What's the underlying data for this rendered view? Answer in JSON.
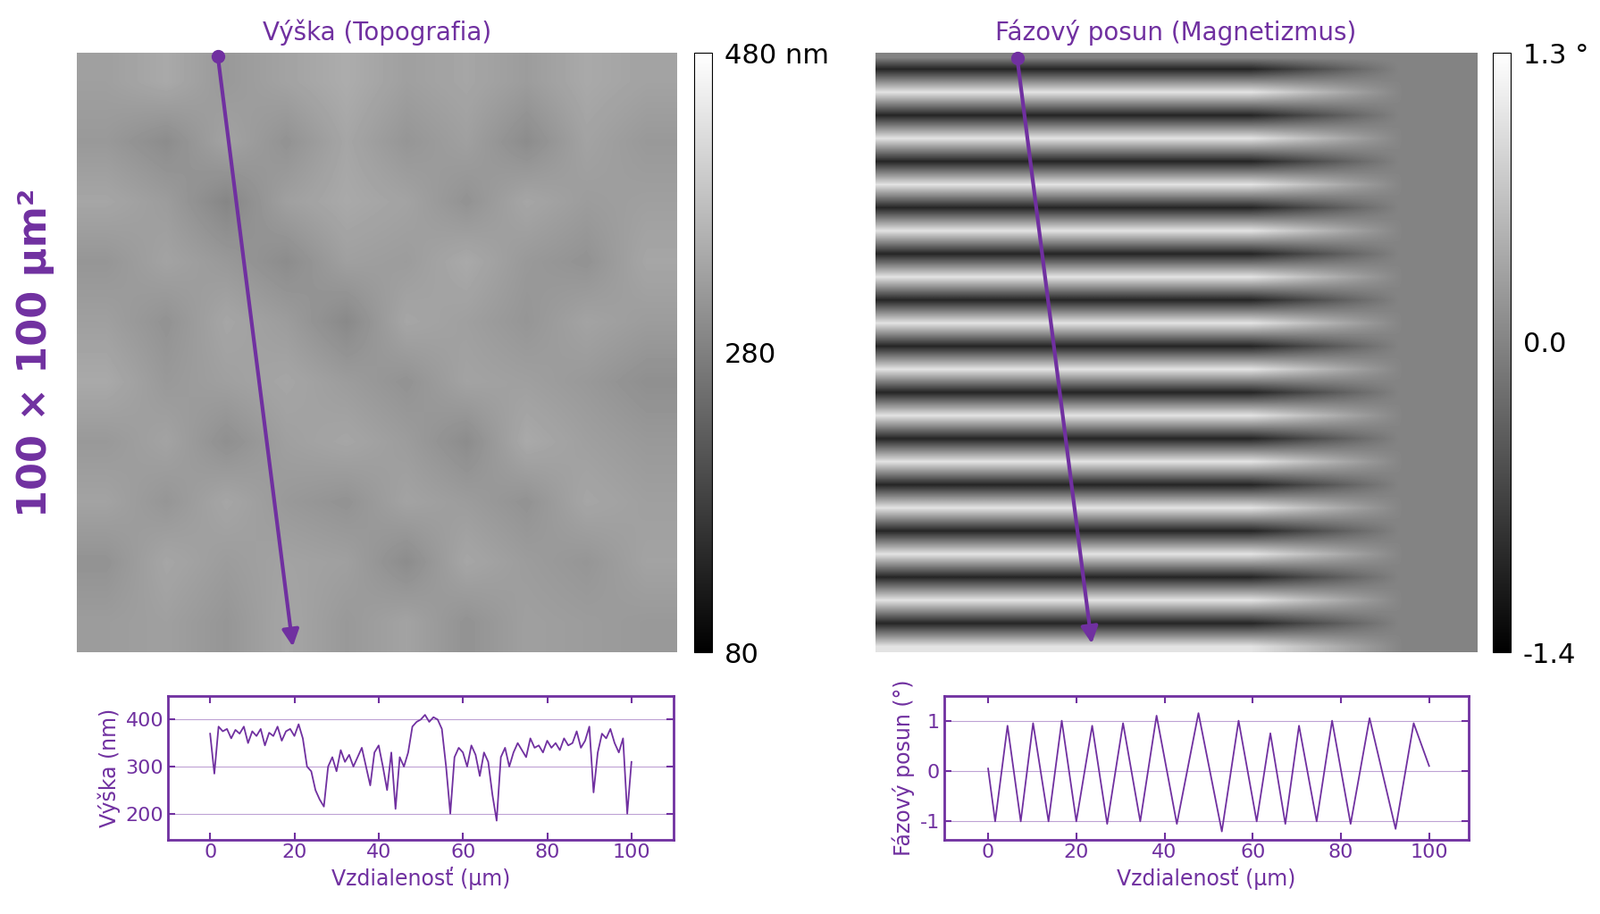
{
  "chart_data": [
    {
      "type": "heatmap",
      "title": "Výška (Topografia)",
      "annotations": [
        "100 × 100 µm²"
      ],
      "color": "#7030a0",
      "tick_labels": false,
      "xlim": [
        0,
        100
      ],
      "ylim": [
        0,
        100
      ],
      "profile_start": [
        23.5,
        0.5
      ],
      "profile_end": [
        36,
        99
      ],
      "colorbar_range": [
        80,
        480
      ],
      "colorbar_ticks": [
        {
          "value": 480,
          "label": "480 nm"
        },
        280,
        80
      ],
      "cells": [
        [
          330,
          345,
          320,
          335,
          350,
          330,
          340,
          325,
          345,
          335
        ],
        [
          320,
          300,
          335,
          310,
          340,
          315,
          330,
          300,
          335,
          320
        ],
        [
          340,
          325,
          290,
          330,
          345,
          335,
          310,
          340,
          325,
          330
        ],
        [
          315,
          335,
          320,
          300,
          330,
          325,
          345,
          320,
          310,
          340
        ],
        [
          330,
          310,
          340,
          325,
          295,
          340,
          330,
          315,
          335,
          325
        ],
        [
          345,
          320,
          330,
          340,
          325,
          310,
          335,
          330,
          320,
          305
        ],
        [
          320,
          335,
          305,
          330,
          340,
          325,
          300,
          345,
          330,
          320
        ],
        [
          335,
          315,
          340,
          320,
          310,
          335,
          325,
          310,
          340,
          330
        ],
        [
          310,
          340,
          325,
          335,
          330,
          300,
          340,
          325,
          315,
          335
        ],
        [
          325,
          330,
          315,
          340,
          320,
          335,
          310,
          330,
          325,
          320
        ]
      ]
    },
    {
      "type": "heatmap",
      "title": "Fázový posun (Magnetizmus)",
      "color": "#7030a0",
      "tick_labels": false,
      "xlim": [
        0,
        100
      ],
      "ylim": [
        0,
        100
      ],
      "profile_start": [
        23.6,
        0.8
      ],
      "profile_end": [
        36,
        98.5
      ],
      "colorbar_range": [
        -1.4,
        1.3
      ],
      "colorbar_ticks": [
        {
          "value": 1.3,
          "label": "1.3 °"
        },
        {
          "value": 0,
          "label": "0.0"
        },
        -1.4
      ],
      "cells": [
        [
          0,
          0,
          0,
          0
        ],
        [
          -1,
          -1,
          -1,
          0
        ],
        [
          0,
          0,
          0,
          0
        ],
        [
          1,
          1,
          1,
          0
        ],
        [
          0,
          0,
          0,
          0
        ],
        [
          -1,
          -1,
          -1,
          0
        ],
        [
          0,
          0,
          0,
          0
        ],
        [
          1,
          1,
          1,
          0
        ],
        [
          0,
          0,
          0,
          0
        ],
        [
          -1,
          -1,
          -1,
          0
        ],
        [
          0,
          0,
          0,
          0
        ],
        [
          1,
          1,
          1,
          0
        ],
        [
          0,
          0,
          0,
          0
        ],
        [
          -1,
          -1,
          -1,
          0
        ],
        [
          0,
          0,
          0,
          0
        ],
        [
          1,
          1,
          1,
          0
        ],
        [
          0,
          0,
          0,
          0
        ],
        [
          -1,
          -1,
          -1,
          0
        ],
        [
          0,
          0,
          0,
          0
        ],
        [
          1,
          1,
          1,
          0
        ],
        [
          0,
          0,
          0,
          0
        ],
        [
          -1,
          -1,
          -1,
          0
        ],
        [
          0,
          0,
          0,
          0
        ],
        [
          1,
          1,
          1,
          0
        ],
        [
          0,
          0,
          0,
          0
        ],
        [
          -1,
          -1,
          -1,
          0
        ],
        [
          0,
          0,
          0,
          0
        ],
        [
          1,
          1,
          1,
          0
        ],
        [
          0,
          0,
          0,
          0
        ],
        [
          -1,
          -1,
          -1,
          0
        ],
        [
          0,
          0,
          0,
          0
        ],
        [
          1,
          1,
          1,
          0
        ],
        [
          0,
          0,
          0,
          0
        ],
        [
          -1,
          -1,
          -1,
          0
        ],
        [
          0,
          0,
          0,
          0
        ],
        [
          1,
          1,
          1,
          0
        ],
        [
          0,
          0,
          0,
          0
        ],
        [
          -1,
          -1,
          -1,
          0
        ],
        [
          0,
          0,
          0,
          0
        ],
        [
          1,
          1,
          1,
          0
        ],
        [
          0,
          0,
          0,
          0
        ],
        [
          -1,
          -1,
          -1,
          0
        ],
        [
          0,
          0,
          0,
          0
        ],
        [
          1,
          1,
          1,
          0
        ],
        [
          0,
          0,
          0,
          0
        ],
        [
          -1,
          -1,
          -1,
          0
        ],
        [
          0,
          0,
          0,
          0
        ],
        [
          1,
          1,
          1,
          0
        ],
        [
          0,
          0,
          0,
          0
        ],
        [
          -1,
          -1,
          -1,
          0
        ],
        [
          0,
          0,
          0,
          0
        ],
        [
          1,
          1,
          1,
          0
        ]
      ]
    },
    {
      "type": "line",
      "xlabel": "Vzdialenosť (µm)",
      "ylabel": "Výška (nm)",
      "color": "#7030a0",
      "grid": true,
      "xlim": [
        -10,
        110
      ],
      "ylim": [
        145,
        450
      ],
      "xticks": [
        0,
        20,
        40,
        60,
        80,
        100
      ],
      "yticks": [
        200,
        300,
        400
      ],
      "x": [
        0,
        1,
        2,
        3,
        4,
        5,
        6,
        7,
        8,
        9,
        10,
        11,
        12,
        13,
        14,
        15,
        16,
        17,
        18,
        19,
        20,
        21,
        22,
        23,
        24,
        25,
        26,
        27,
        28,
        29,
        30,
        31,
        32,
        33,
        34,
        35,
        36,
        37,
        38,
        39,
        40,
        41,
        42,
        43,
        44,
        45,
        46,
        47,
        48,
        49,
        50,
        51,
        52,
        53,
        54,
        55,
        56,
        57,
        58,
        59,
        60,
        61,
        62,
        63,
        64,
        65,
        66,
        67,
        68,
        69,
        70,
        71,
        72,
        73,
        74,
        75,
        76,
        77,
        78,
        79,
        80,
        81,
        82,
        83,
        84,
        85,
        86,
        87,
        88,
        89,
        90,
        91,
        92,
        93,
        94,
        95,
        96,
        97,
        98,
        99,
        100
      ],
      "values": [
        370,
        285,
        385,
        375,
        380,
        360,
        378,
        370,
        385,
        350,
        375,
        365,
        380,
        345,
        372,
        365,
        385,
        355,
        375,
        380,
        365,
        390,
        360,
        300,
        290,
        250,
        230,
        215,
        300,
        320,
        290,
        335,
        310,
        325,
        300,
        320,
        340,
        300,
        260,
        330,
        345,
        300,
        250,
        330,
        210,
        320,
        300,
        330,
        385,
        395,
        400,
        410,
        395,
        405,
        400,
        380,
        300,
        200,
        320,
        340,
        330,
        300,
        345,
        325,
        280,
        330,
        310,
        240,
        185,
        320,
        340,
        300,
        330,
        350,
        335,
        320,
        360,
        340,
        345,
        330,
        355,
        340,
        350,
        335,
        360,
        345,
        350,
        375,
        340,
        355,
        385,
        245,
        330,
        370,
        360,
        380,
        350,
        330,
        360,
        200,
        310
      ]
    },
    {
      "type": "line",
      "xlabel": "Vzdialenosť (µm)",
      "ylabel": "Fázový posun (°)",
      "color": "#7030a0",
      "grid": true,
      "xlim": [
        -10,
        109
      ],
      "ylim": [
        -1.36,
        1.49
      ],
      "xticks": [
        0,
        20,
        40,
        60,
        80,
        100
      ],
      "yticks": [
        -1,
        0,
        1
      ],
      "x": [
        0,
        1.6,
        4.4,
        7.4,
        10.2,
        13.7,
        16.7,
        20.0,
        23.6,
        27.0,
        30.6,
        34.5,
        38.2,
        42.8,
        47.7,
        53.0,
        56.8,
        60.9,
        64.0,
        67.4,
        70.5,
        74.5,
        78.0,
        82.2,
        86.5,
        92.4,
        96.5,
        100
      ],
      "values": [
        0.05,
        -1.0,
        0.9,
        -1.0,
        0.95,
        -1.0,
        1.0,
        -1.0,
        0.9,
        -1.05,
        0.95,
        -1.0,
        1.1,
        -1.05,
        1.15,
        -1.2,
        1.0,
        -1.0,
        0.75,
        -1.05,
        0.9,
        -1.0,
        1.0,
        -1.05,
        1.05,
        -1.15,
        0.95,
        0.1
      ]
    }
  ]
}
